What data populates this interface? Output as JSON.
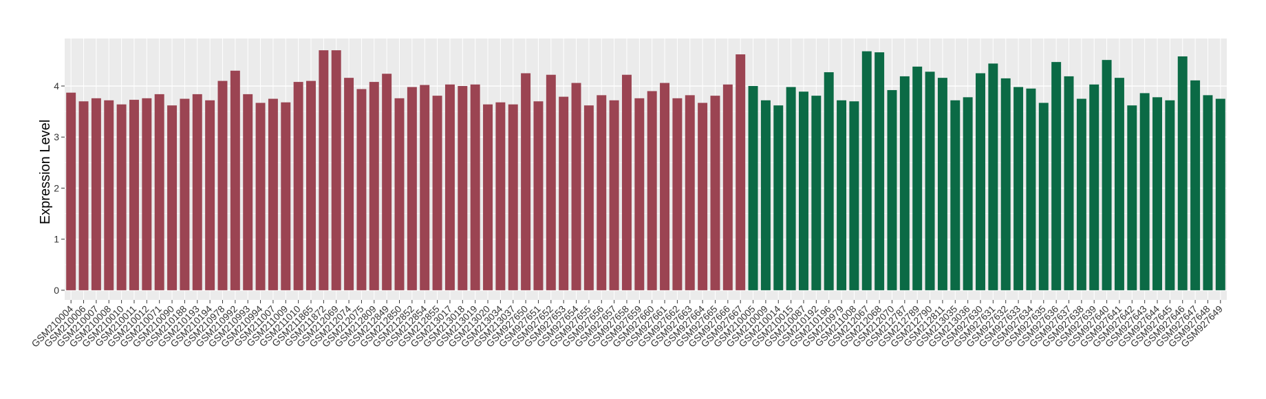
{
  "chart_data": {
    "type": "bar",
    "y_label": "Expression Level",
    "categories": [
      "GSM210004",
      "GSM210006",
      "GSM210007",
      "GSM210008",
      "GSM210010",
      "GSM210011",
      "GSM210012",
      "GSM210071",
      "GSM210090",
      "GSM210188",
      "GSM210193",
      "GSM210194",
      "GSM210978",
      "GSM210992",
      "GSM210993",
      "GSM210994",
      "GSM211007",
      "GSM211009",
      "GSM211010",
      "GSM211865",
      "GSM211872",
      "GSM212069",
      "GSM212074",
      "GSM212075",
      "GSM212809",
      "GSM212849",
      "GSM212850",
      "GSM212852",
      "GSM212854",
      "GSM212855",
      "GSM213017",
      "GSM213018",
      "GSM213019",
      "GSM213020",
      "GSM213034",
      "GSM213037",
      "GSM927650",
      "GSM927651",
      "GSM927652",
      "GSM927653",
      "GSM927654",
      "GSM927655",
      "GSM927656",
      "GSM927657",
      "GSM927658",
      "GSM927659",
      "GSM927660",
      "GSM927661",
      "GSM927662",
      "GSM927663",
      "GSM927664",
      "GSM927665",
      "GSM927666",
      "GSM927667",
      "GSM210005",
      "GSM210009",
      "GSM210014",
      "GSM210015",
      "GSM210087",
      "GSM210192",
      "GSM210196",
      "GSM210979",
      "GSM211008",
      "GSM212067",
      "GSM212068",
      "GSM212070",
      "GSM212787",
      "GSM212789",
      "GSM212790",
      "GSM212811",
      "GSM213035",
      "GSM213036",
      "GSM927630",
      "GSM927631",
      "GSM927632",
      "GSM927633",
      "GSM927634",
      "GSM927635",
      "GSM927636",
      "GSM927637",
      "GSM927638",
      "GSM927639",
      "GSM927640",
      "GSM927641",
      "GSM927642",
      "GSM927643",
      "GSM927644",
      "GSM927645",
      "GSM927646",
      "GSM927647",
      "GSM927648",
      "GSM927649"
    ],
    "series": [
      {
        "color": "#9b4452",
        "values": [
          3.87,
          3.7,
          3.76,
          3.72,
          3.64,
          3.73,
          3.76,
          3.84,
          3.62,
          3.75,
          3.84,
          3.72,
          4.1,
          4.3,
          3.84,
          3.67,
          3.75,
          3.68,
          4.08,
          4.1,
          4.7,
          4.7,
          4.16,
          3.94,
          4.08,
          4.24,
          3.76,
          3.98,
          4.02,
          3.81,
          4.03,
          4.0,
          4.03,
          3.64,
          3.68,
          3.64,
          4.25,
          3.7,
          4.22,
          3.79,
          4.06,
          3.62,
          3.82,
          3.72,
          4.22,
          3.76,
          3.9,
          4.06,
          3.76,
          3.82,
          3.67,
          3.81,
          4.03,
          4.62,
          null,
          null,
          null,
          null,
          null,
          null,
          null,
          null,
          null,
          null,
          null,
          null,
          null,
          null,
          null,
          null,
          null,
          null,
          null,
          null,
          null,
          null,
          null,
          null,
          null,
          null,
          null,
          null,
          null,
          null,
          null,
          null,
          null,
          null,
          null,
          null,
          null,
          null
        ]
      },
      {
        "color": "#0b6a45",
        "values": [
          null,
          null,
          null,
          null,
          null,
          null,
          null,
          null,
          null,
          null,
          null,
          null,
          null,
          null,
          null,
          null,
          null,
          null,
          null,
          null,
          null,
          null,
          null,
          null,
          null,
          null,
          null,
          null,
          null,
          null,
          null,
          null,
          null,
          null,
          null,
          null,
          null,
          null,
          null,
          null,
          null,
          null,
          null,
          null,
          null,
          null,
          null,
          null,
          null,
          null,
          null,
          null,
          null,
          null,
          4.0,
          3.72,
          3.62,
          3.98,
          3.89,
          3.81,
          4.27,
          3.72,
          3.7,
          4.68,
          4.66,
          3.92,
          4.19,
          4.38,
          4.28,
          4.16,
          3.72,
          3.78,
          4.25,
          4.44,
          4.15,
          3.98,
          3.95,
          3.67,
          4.47,
          4.19,
          3.75,
          4.03,
          4.51,
          4.16,
          3.62,
          3.86,
          3.78,
          3.72,
          4.58,
          4.11,
          3.82,
          3.75
        ]
      }
    ],
    "ylim": [
      -0.19,
      4.93
    ],
    "yticks": [
      0,
      1,
      2,
      3,
      4
    ],
    "grid": true
  }
}
